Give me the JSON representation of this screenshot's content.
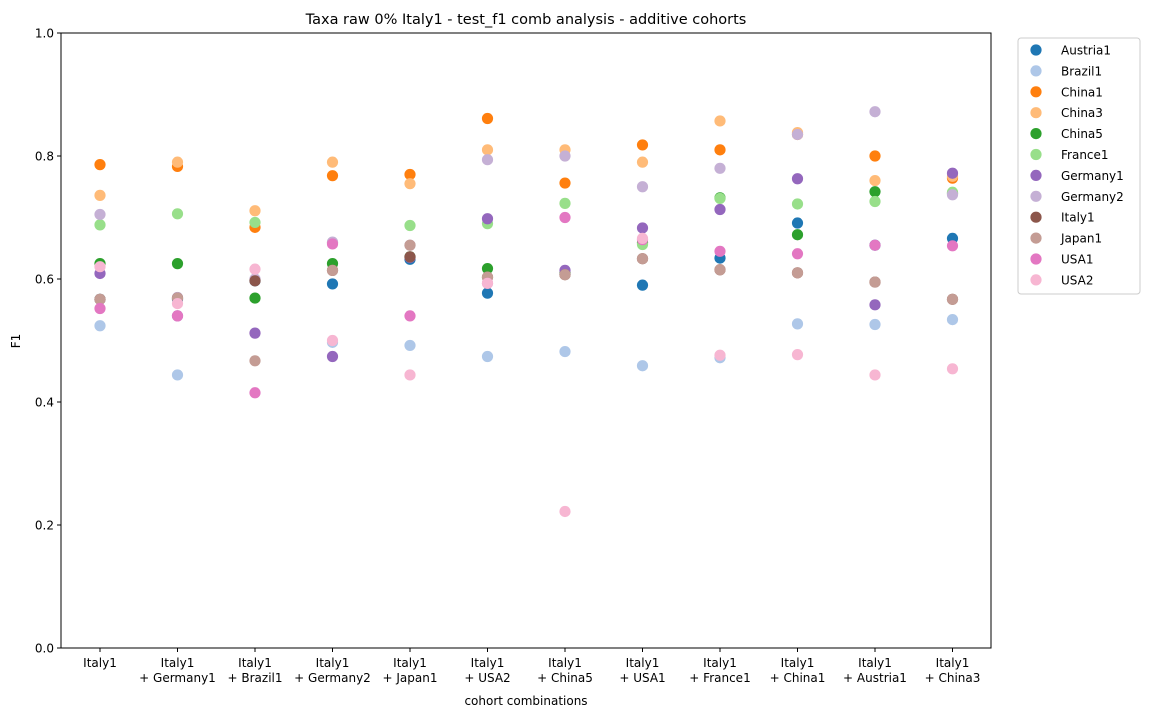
{
  "chart_data": {
    "type": "scatter",
    "title": "Taxa raw 0% Italy1 - test_f1 comb analysis - additive cohorts",
    "xlabel": "cohort combinations",
    "ylabel": "F1",
    "ylim": [
      0.0,
      1.0
    ],
    "yticks": [
      "0.0",
      "0.2",
      "0.4",
      "0.6",
      "0.8",
      "1.0"
    ],
    "grid": false,
    "legend_position": "outside-top-right",
    "categories": [
      [
        "Italy1"
      ],
      [
        "Italy1",
        "+ Germany1"
      ],
      [
        "Italy1",
        "+ Brazil1"
      ],
      [
        "Italy1",
        "+ Germany2"
      ],
      [
        "Italy1",
        "+ Japan1"
      ],
      [
        "Italy1",
        "+ USA2"
      ],
      [
        "Italy1",
        "+ China5"
      ],
      [
        "Italy1",
        "+ USA1"
      ],
      [
        "Italy1",
        "+ France1"
      ],
      [
        "Italy1",
        "+ China1"
      ],
      [
        "Italy1",
        "+ Austria1"
      ],
      [
        "Italy1",
        "+ China3"
      ]
    ],
    "series": [
      {
        "name": "Austria1",
        "color": "#1f77b4",
        "values": [
          0.567,
          0.567,
          0.597,
          0.592,
          0.632,
          0.577,
          0.608,
          0.59,
          0.634,
          0.691,
          0.655,
          0.666
        ]
      },
      {
        "name": "Brazil1",
        "color": "#aec7e8",
        "values": [
          0.524,
          0.444,
          0.598,
          0.497,
          0.492,
          0.474,
          0.482,
          0.459,
          0.472,
          0.527,
          0.526,
          0.534
        ]
      },
      {
        "name": "China1",
        "color": "#ff7f0e",
        "values": [
          0.786,
          0.783,
          0.684,
          0.768,
          0.77,
          0.861,
          0.756,
          0.818,
          0.81,
          0.835,
          0.8,
          0.764
        ]
      },
      {
        "name": "China3",
        "color": "#ffbb78",
        "values": [
          0.736,
          0.79,
          0.711,
          0.79,
          0.755,
          0.81,
          0.81,
          0.79,
          0.857,
          0.838,
          0.76,
          0.767
        ]
      },
      {
        "name": "China5",
        "color": "#2ca02c",
        "values": [
          0.625,
          0.625,
          0.569,
          0.625,
          0.636,
          0.617,
          0.61,
          0.659,
          0.732,
          0.672,
          0.742,
          0.739
        ]
      },
      {
        "name": "France1",
        "color": "#98df8a",
        "values": [
          0.688,
          0.706,
          0.692,
          0.659,
          0.687,
          0.69,
          0.723,
          0.656,
          0.731,
          0.722,
          0.726,
          0.741
        ]
      },
      {
        "name": "Germany1",
        "color": "#9467bd",
        "values": [
          0.609,
          0.54,
          0.512,
          0.474,
          0.635,
          0.698,
          0.614,
          0.683,
          0.713,
          0.763,
          0.558,
          0.772
        ]
      },
      {
        "name": "Germany2",
        "color": "#c5b0d5",
        "values": [
          0.705,
          0.57,
          0.6,
          0.66,
          0.655,
          0.794,
          0.8,
          0.75,
          0.78,
          0.835,
          0.872,
          0.737
        ]
      },
      {
        "name": "Italy1",
        "color": "#8c564b",
        "values": [
          0.567,
          0.569,
          0.597,
          0.614,
          0.636,
          0.603,
          0.607,
          0.633,
          0.615,
          0.61,
          0.595,
          0.567
        ]
      },
      {
        "name": "Japan1",
        "color": "#c49c94",
        "values": [
          0.567,
          0.569,
          0.467,
          0.614,
          0.655,
          0.603,
          0.607,
          0.633,
          0.615,
          0.61,
          0.595,
          0.567
        ]
      },
      {
        "name": "USA1",
        "color": "#e377c2",
        "values": [
          0.552,
          0.54,
          0.415,
          0.657,
          0.54,
          0.593,
          0.7,
          0.664,
          0.645,
          0.641,
          0.655,
          0.654
        ]
      },
      {
        "name": "USA2",
        "color": "#f7b6d2",
        "values": [
          0.62,
          0.56,
          0.616,
          0.5,
          0.444,
          0.593,
          0.222,
          0.666,
          0.476,
          0.477,
          0.444,
          0.454
        ]
      }
    ]
  }
}
